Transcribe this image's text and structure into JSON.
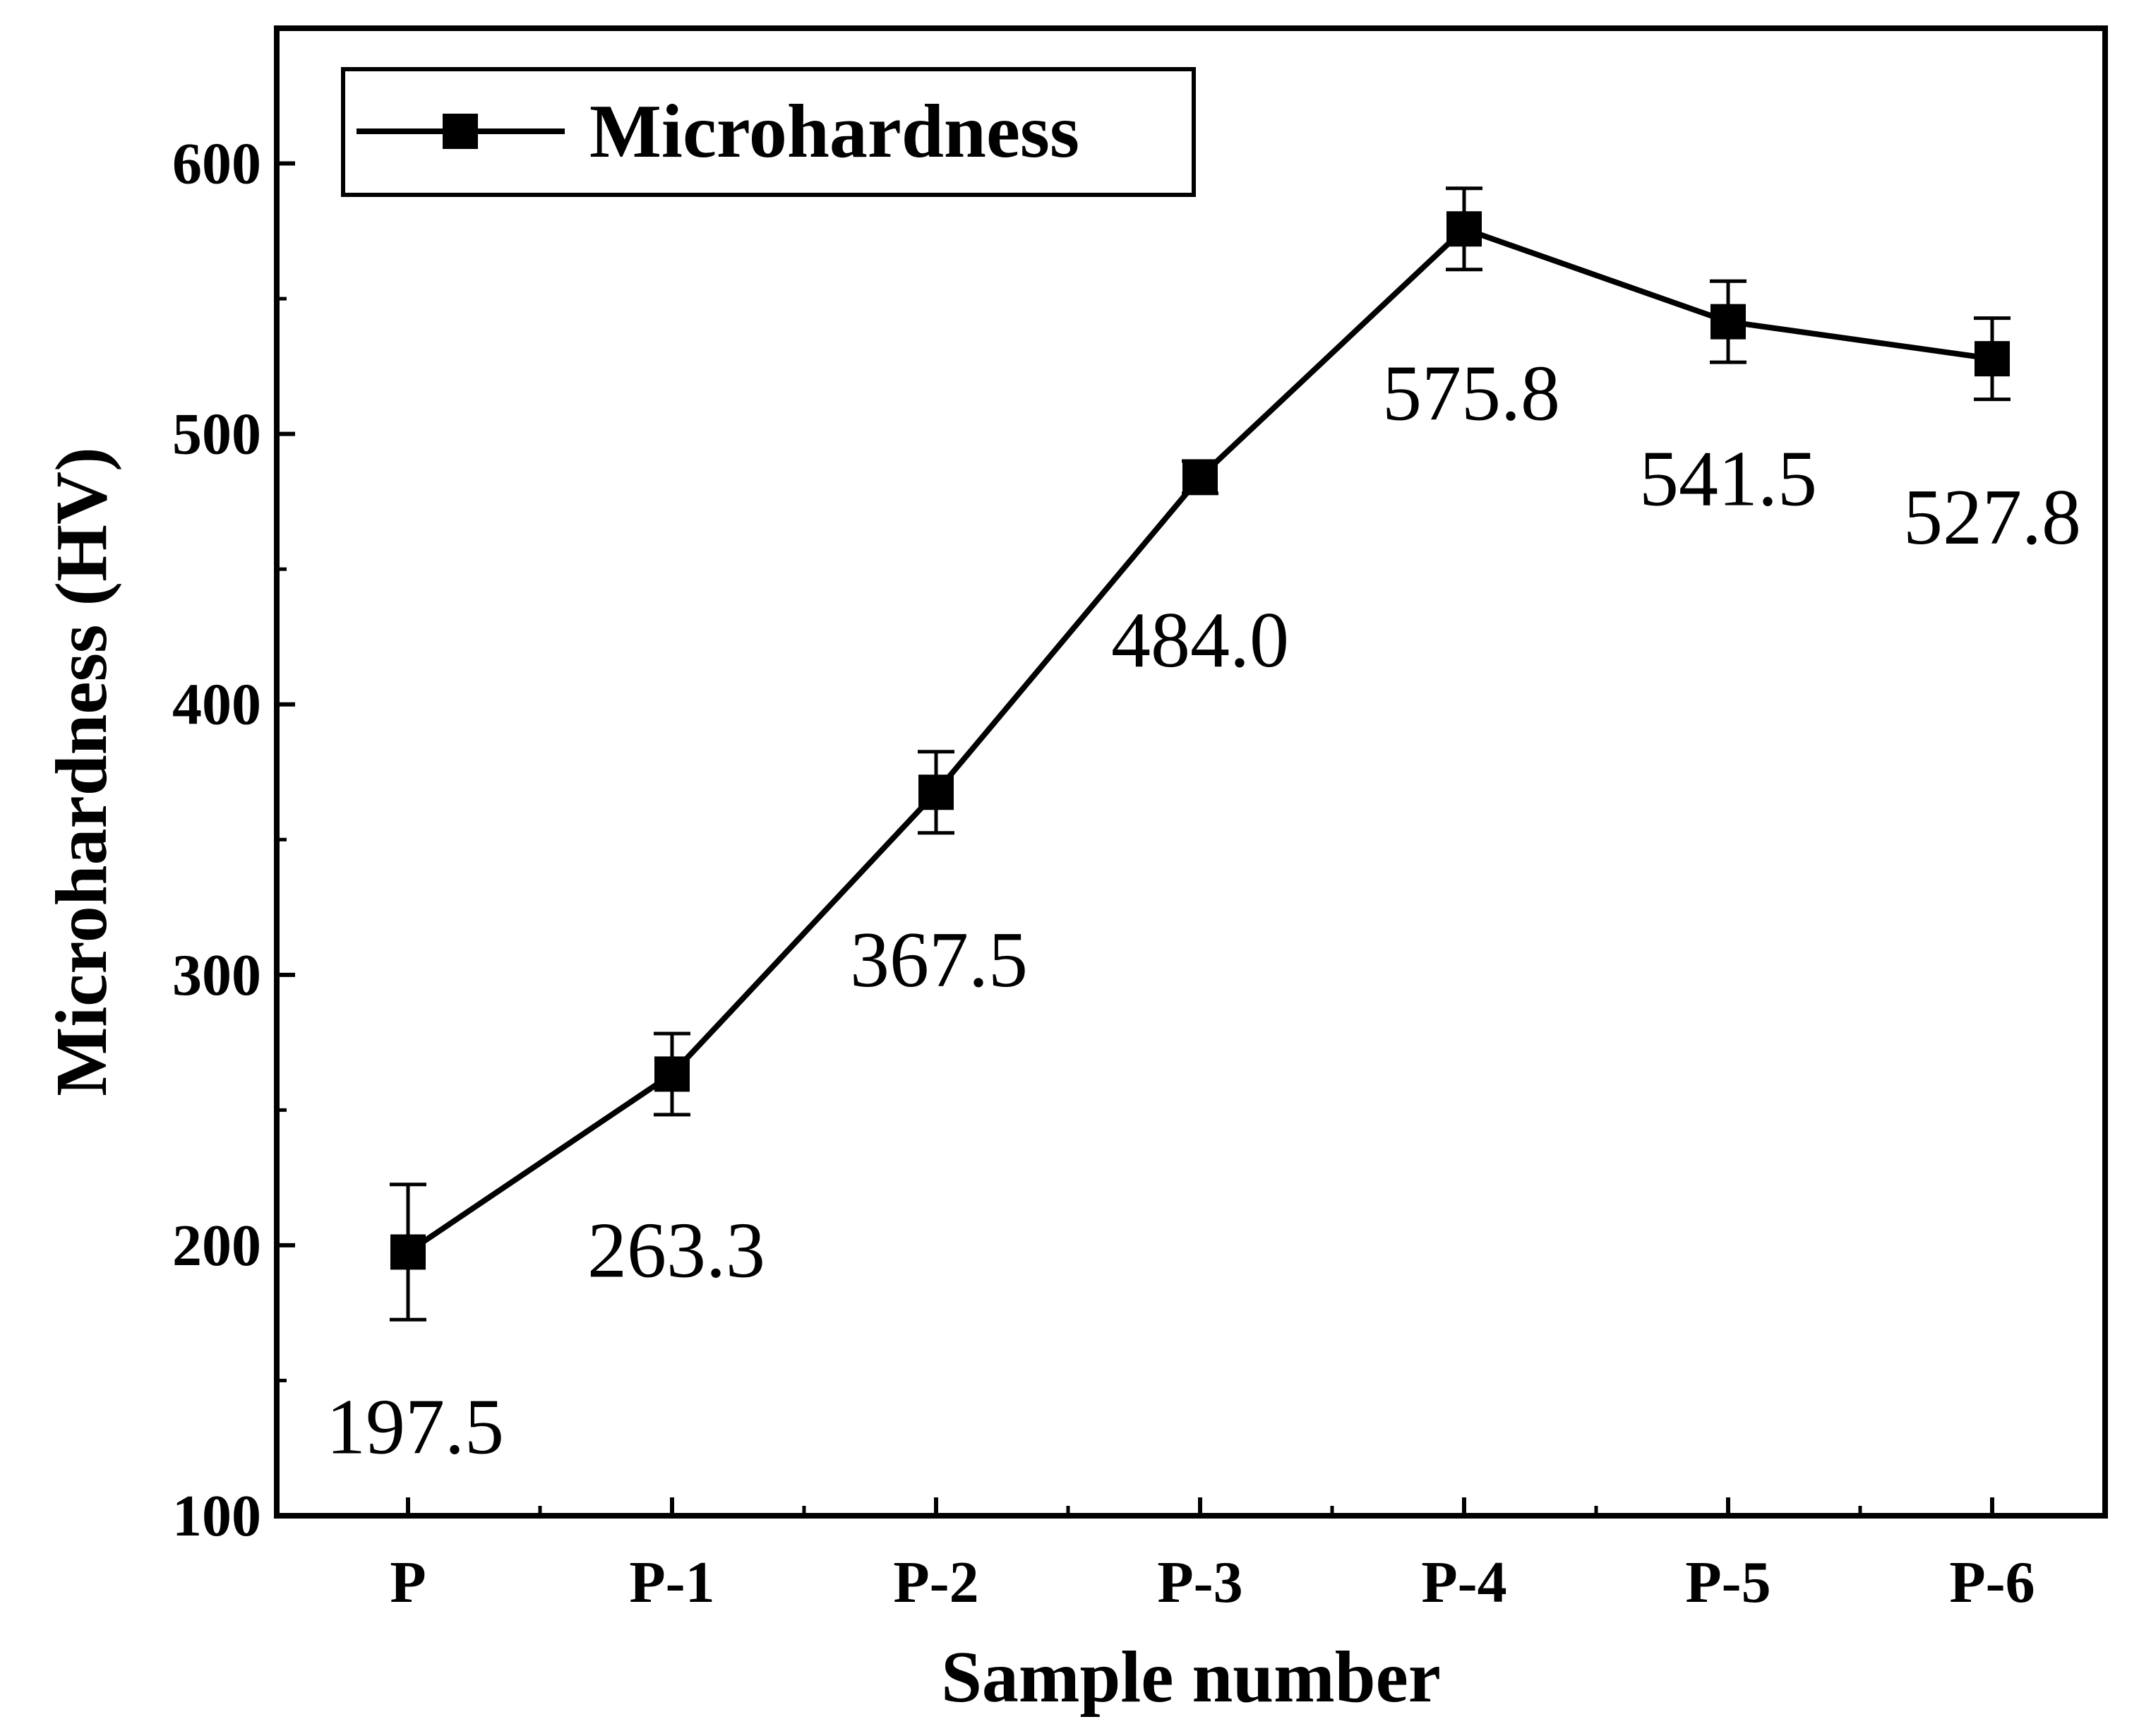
{
  "chart_data": {
    "type": "line",
    "title": "",
    "xlabel": "Sample number",
    "ylabel": "Microhardness (HV)",
    "categories": [
      "P",
      "P-1",
      "P-2",
      "P-3",
      "P-4",
      "P-5",
      "P-6"
    ],
    "series": [
      {
        "name": "Microhardness",
        "values": [
          197.5,
          263.3,
          367.5,
          484.0,
          575.8,
          541.5,
          527.8
        ],
        "errors": [
          25,
          15,
          15,
          6,
          15,
          15,
          15
        ],
        "data_labels": [
          "197.5",
          "263.3",
          "367.5",
          "484.0",
          "575.8",
          "541.5",
          "527.8"
        ],
        "marker": "square",
        "color": "#000000"
      }
    ],
    "ylim": [
      100,
      650
    ],
    "yticks": [
      100,
      200,
      300,
      400,
      500,
      600
    ],
    "ytick_labels": [
      "100",
      "200",
      "300",
      "400",
      "500",
      "600"
    ],
    "grid": false,
    "legend": {
      "position": "top-left",
      "entries": [
        "Microhardness"
      ]
    }
  }
}
